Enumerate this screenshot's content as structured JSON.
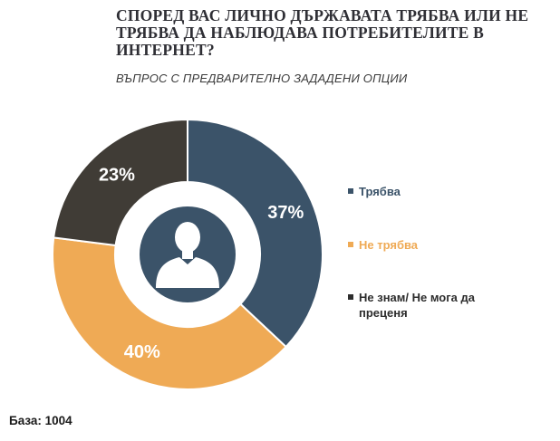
{
  "chart_data": {
    "type": "pie",
    "donut": true,
    "title": "СПОРЕД ВАС ЛИЧНО ДЪРЖАВАТА ТРЯБВА ИЛИ НЕ ТРЯБВА ДА НАБЛЮДАВА ПОТРЕБИТЕЛИТЕ В ИНТЕРНЕТ?",
    "subtitle": "ВЪПРОС С ПРЕДВАРИТЕЛНО ЗАДАДЕНИ ОПЦИИ",
    "categories": [
      "Трябва",
      "Не трябва",
      "Не знам/ Не мога да преценя"
    ],
    "values": [
      37,
      40,
      23
    ],
    "value_labels": [
      "37%",
      "40%",
      "23%"
    ],
    "colors": [
      "#3b5369",
      "#efaa55",
      "#403c36"
    ],
    "legend_colors": [
      "#3b5369",
      "#efaa55",
      "#2d2d2d"
    ],
    "legend_position": "right",
    "center_icon": "person-silhouette-icon"
  },
  "footer": {
    "base_label": "База: 1004"
  }
}
